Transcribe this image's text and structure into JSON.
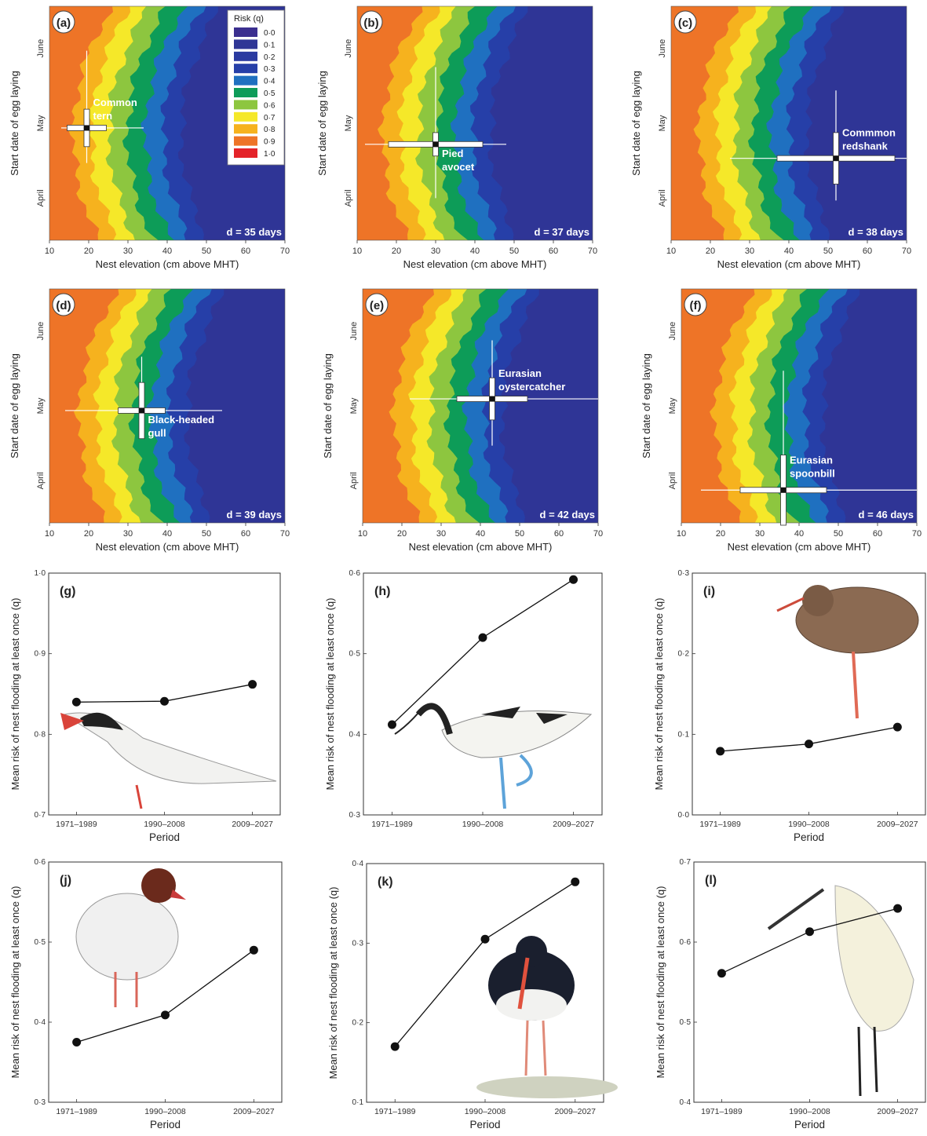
{
  "chart_data": [
    {
      "type": "heatmap",
      "panel": "(a)",
      "xlabel": "Nest elevation (cm above MHT)",
      "ylabel": "Start date of egg laying",
      "x_ticks": [
        10,
        20,
        30,
        40,
        50,
        60,
        70
      ],
      "y_tick_labels": [
        "April",
        "May",
        "June"
      ],
      "xlim": [
        10,
        70
      ],
      "species_label": "Common tern",
      "marker": {
        "x": 19.5,
        "x_sd": 5,
        "x_range": [
          13,
          34
        ],
        "y_frac": 0.48,
        "y_sd": 0.08,
        "y_range": [
          0.33,
          0.81
        ]
      },
      "d_label": "d = 35 days",
      "contour_shift": 0,
      "legend": {
        "title": "Risk (q)",
        "levels": [
          "0·0",
          "0·1",
          "0·2",
          "0·3",
          "0·4",
          "0·5",
          "0·6",
          "0·7",
          "0·8",
          "0·9",
          "1·0"
        ],
        "colors": [
          "#3b2f8f",
          "#2f3696",
          "#2a3aa0",
          "#263fa8",
          "#1f70c0",
          "#0d9c58",
          "#8dc63f",
          "#f5e829",
          "#f6b21e",
          "#ee7427",
          "#e42329"
        ]
      }
    },
    {
      "type": "heatmap",
      "panel": "(b)",
      "xlabel": "Nest elevation (cm above MHT)",
      "ylabel": "Start date of egg laying",
      "x_ticks": [
        10,
        20,
        30,
        40,
        50,
        60,
        70
      ],
      "y_tick_labels": [
        "April",
        "May",
        "June"
      ],
      "xlim": [
        10,
        70
      ],
      "species_label": "Pied avocet",
      "marker": {
        "x": 30,
        "x_sd": 12,
        "x_range": [
          12,
          48
        ],
        "y_frac": 0.41,
        "y_sd": 0.05,
        "y_range": [
          0.18,
          0.74
        ]
      },
      "d_label": "d = 37 days",
      "contour_shift": 0.5
    },
    {
      "type": "heatmap",
      "panel": "(c)",
      "xlabel": "Nest elevation (cm above MHT)",
      "ylabel": "Start date of egg laying",
      "x_ticks": [
        10,
        20,
        30,
        40,
        50,
        60,
        70
      ],
      "y_tick_labels": [
        "April",
        "May",
        "June"
      ],
      "xlim": [
        10,
        70
      ],
      "species_label": "Commmon redshank",
      "marker": {
        "x": 52,
        "x_sd": 15,
        "x_range": [
          25,
          70
        ],
        "y_frac": 0.35,
        "y_sd": 0.11,
        "y_range": [
          0.17,
          0.64
        ]
      },
      "d_label": "d = 38 days",
      "contour_shift": 1
    },
    {
      "type": "heatmap",
      "panel": "(d)",
      "xlabel": "Nest elevation (cm above MHT)",
      "ylabel": "Start date of egg laying",
      "x_ticks": [
        10,
        20,
        30,
        40,
        50,
        60,
        70
      ],
      "y_tick_labels": [
        "April",
        "May",
        "June"
      ],
      "xlim": [
        10,
        70
      ],
      "species_label": "Black-headed gull",
      "marker": {
        "x": 33.5,
        "x_sd": 6,
        "x_range": [
          14,
          54
        ],
        "y_frac": 0.48,
        "y_sd": 0.12,
        "y_range": [
          0.38,
          0.71
        ]
      },
      "d_label": "d = 39 days",
      "contour_shift": 1.5
    },
    {
      "type": "heatmap",
      "panel": "(e)",
      "xlabel": "Nest elevation (cm above MHT)",
      "ylabel": "Start date of egg laying",
      "x_ticks": [
        10,
        20,
        30,
        40,
        50,
        60,
        70
      ],
      "y_tick_labels": [
        "April",
        "May",
        "June"
      ],
      "xlim": [
        10,
        70
      ],
      "species_label": "Eurasian oystercatcher",
      "marker": {
        "x": 43,
        "x_sd": 9,
        "x_range": [
          22,
          70
        ],
        "y_frac": 0.53,
        "y_sd": 0.09,
        "y_range": [
          0.33,
          0.78
        ]
      },
      "d_label": "d = 42 days",
      "contour_shift": 2
    },
    {
      "type": "heatmap",
      "panel": "(f)",
      "xlabel": "Nest elevation (cm above MHT)",
      "ylabel": "Start date of egg laying",
      "x_ticks": [
        10,
        20,
        30,
        40,
        50,
        60,
        70
      ],
      "y_tick_labels": [
        "April",
        "May",
        "June"
      ],
      "xlim": [
        10,
        70
      ],
      "species_label": "Eurasian spoonbill",
      "marker": {
        "x": 36,
        "x_sd": 11,
        "x_range": [
          15,
          70
        ],
        "y_frac": 0.14,
        "y_sd": 0.15,
        "y_range": [
          0.0,
          0.65
        ]
      },
      "d_label": "d = 46 days",
      "contour_shift": 2.5
    },
    {
      "type": "line",
      "panel": "(g)",
      "x": [
        "1971–1989",
        "1990–2008",
        "2009–2027"
      ],
      "values": [
        0.84,
        0.841,
        0.862
      ],
      "xlabel": "Period",
      "ylabel": "Mean risk of nest flooding at least once (q)",
      "ylim": [
        0.7,
        1.0
      ],
      "y_ticks": [
        "0·7",
        "0·8",
        "0·9",
        "1·0"
      ],
      "bird": "tern"
    },
    {
      "type": "line",
      "panel": "(h)",
      "x": [
        "1971–1989",
        "1990–2008",
        "2009–2027"
      ],
      "values": [
        0.412,
        0.52,
        0.592
      ],
      "xlabel": "",
      "ylabel": "Mean risk of nest flooding at least once (q)",
      "ylim": [
        0.3,
        0.6
      ],
      "y_ticks": [
        "0·3",
        "0·4",
        "0·5",
        "0·6"
      ],
      "bird": "avocet"
    },
    {
      "type": "line",
      "panel": "(i)",
      "x": [
        "1971–1989",
        "1990–2008",
        "2009–2027"
      ],
      "values": [
        0.079,
        0.088,
        0.109
      ],
      "xlabel": "Period",
      "ylabel": "Mean risk of nest flooding at least once (q)",
      "ylim": [
        0.0,
        0.3
      ],
      "y_ticks": [
        "0·0",
        "0·1",
        "0·2",
        "0·3"
      ],
      "bird": "redshank"
    },
    {
      "type": "line",
      "panel": "(j)",
      "x": [
        "1971–1989",
        "1990–2008",
        "2009–2027"
      ],
      "values": [
        0.375,
        0.409,
        0.49
      ],
      "xlabel": "Period",
      "ylabel": "Mean risk of nest flooding at least once (q)",
      "ylim": [
        0.3,
        0.6
      ],
      "y_ticks": [
        "0·3",
        "0·4",
        "0·5",
        "0·6"
      ],
      "bird": "gull"
    },
    {
      "type": "line",
      "panel": "(k)",
      "x": [
        "1971–1989",
        "1990–2008",
        "2009–2027"
      ],
      "values": [
        0.17,
        0.305,
        0.377
      ],
      "xlabel": "Period",
      "ylabel": "Mean risk of nest flooding at least once (q)",
      "ylim": [
        0.1,
        0.4
      ],
      "y_ticks": [
        "0·1",
        "0·2",
        "0·3",
        "0·4"
      ],
      "bird": "oystercatcher"
    },
    {
      "type": "line",
      "panel": "(l)",
      "x": [
        "1971–1989",
        "1990–2008",
        "2009–2027"
      ],
      "values": [
        0.561,
        0.613,
        0.642
      ],
      "xlabel": "Period",
      "ylabel": "Mean risk of nest flooding at least once (q)",
      "ylim": [
        0.4,
        0.7
      ],
      "y_ticks": [
        "0·4",
        "0·5",
        "0·6",
        "0·7"
      ],
      "bird": "spoonbill"
    }
  ]
}
